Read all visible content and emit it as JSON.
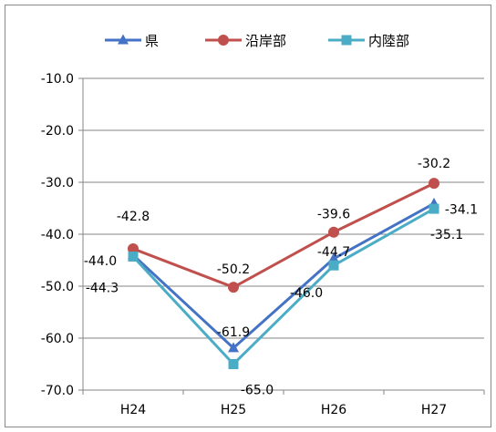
{
  "chart_data": {
    "type": "line",
    "categories": [
      "H24",
      "H25",
      "H26",
      "H27"
    ],
    "series": [
      {
        "name": "県",
        "color": "#4472C4",
        "marker": "triangle",
        "values": [
          -44.0,
          -61.9,
          -44.7,
          -34.1
        ]
      },
      {
        "name": "沿岸部",
        "color": "#C0504D",
        "marker": "circle",
        "values": [
          -42.8,
          -50.2,
          -39.6,
          -30.2
        ]
      },
      {
        "name": "内陸部",
        "color": "#4BACC6",
        "marker": "square",
        "values": [
          -44.3,
          -65.0,
          -46.0,
          -35.1
        ]
      }
    ],
    "ylim": [
      -70,
      -10
    ],
    "yticks": [
      -10,
      -20,
      -30,
      -40,
      -50,
      -60,
      -70
    ],
    "ytick_labels": [
      "-10.0",
      "-20.0",
      "-30.0",
      "-40.0",
      "-50.0",
      "-60.0",
      "-70.0"
    ],
    "data_labels": [
      [
        "-44.0",
        "-61.9",
        "-44.7",
        "-34.1"
      ],
      [
        "-42.8",
        "-50.2",
        "-39.6",
        "-30.2"
      ],
      [
        "-44.3",
        "-65.0",
        "-46.0",
        "-35.1"
      ]
    ],
    "grid": true,
    "legend_position": "top"
  }
}
